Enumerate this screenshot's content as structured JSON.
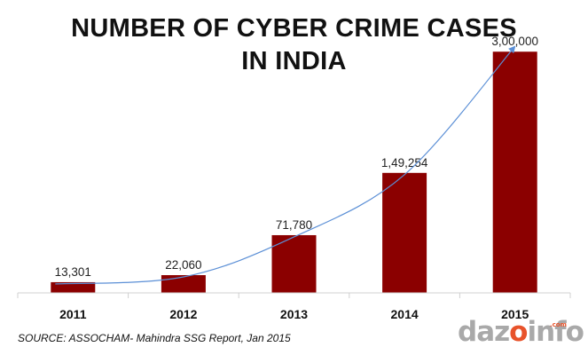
{
  "chart_data": {
    "type": "bar",
    "title_lines": [
      "NUMBER OF CYBER CRIME CASES",
      "IN INDIA"
    ],
    "categories": [
      "2011",
      "2012",
      "2013",
      "2014",
      "2015"
    ],
    "values": [
      13301,
      22060,
      71780,
      149254,
      300000
    ],
    "value_labels": [
      "13,301",
      "22,060",
      "71,780",
      "1,49,254",
      "3,00,000"
    ],
    "ylim": [
      0,
      340000
    ],
    "grid": false,
    "legend": "none",
    "trend_arrow": true,
    "bar_color": "#8b0000",
    "trend_color": "#5b8fd6"
  },
  "source": "SOURCE: ASSOCHAM- Mahindra SSG Report, Jan 2015",
  "brand": {
    "part1": "daz",
    "part2": "o",
    "part3": "info",
    "suffix": ".com"
  }
}
